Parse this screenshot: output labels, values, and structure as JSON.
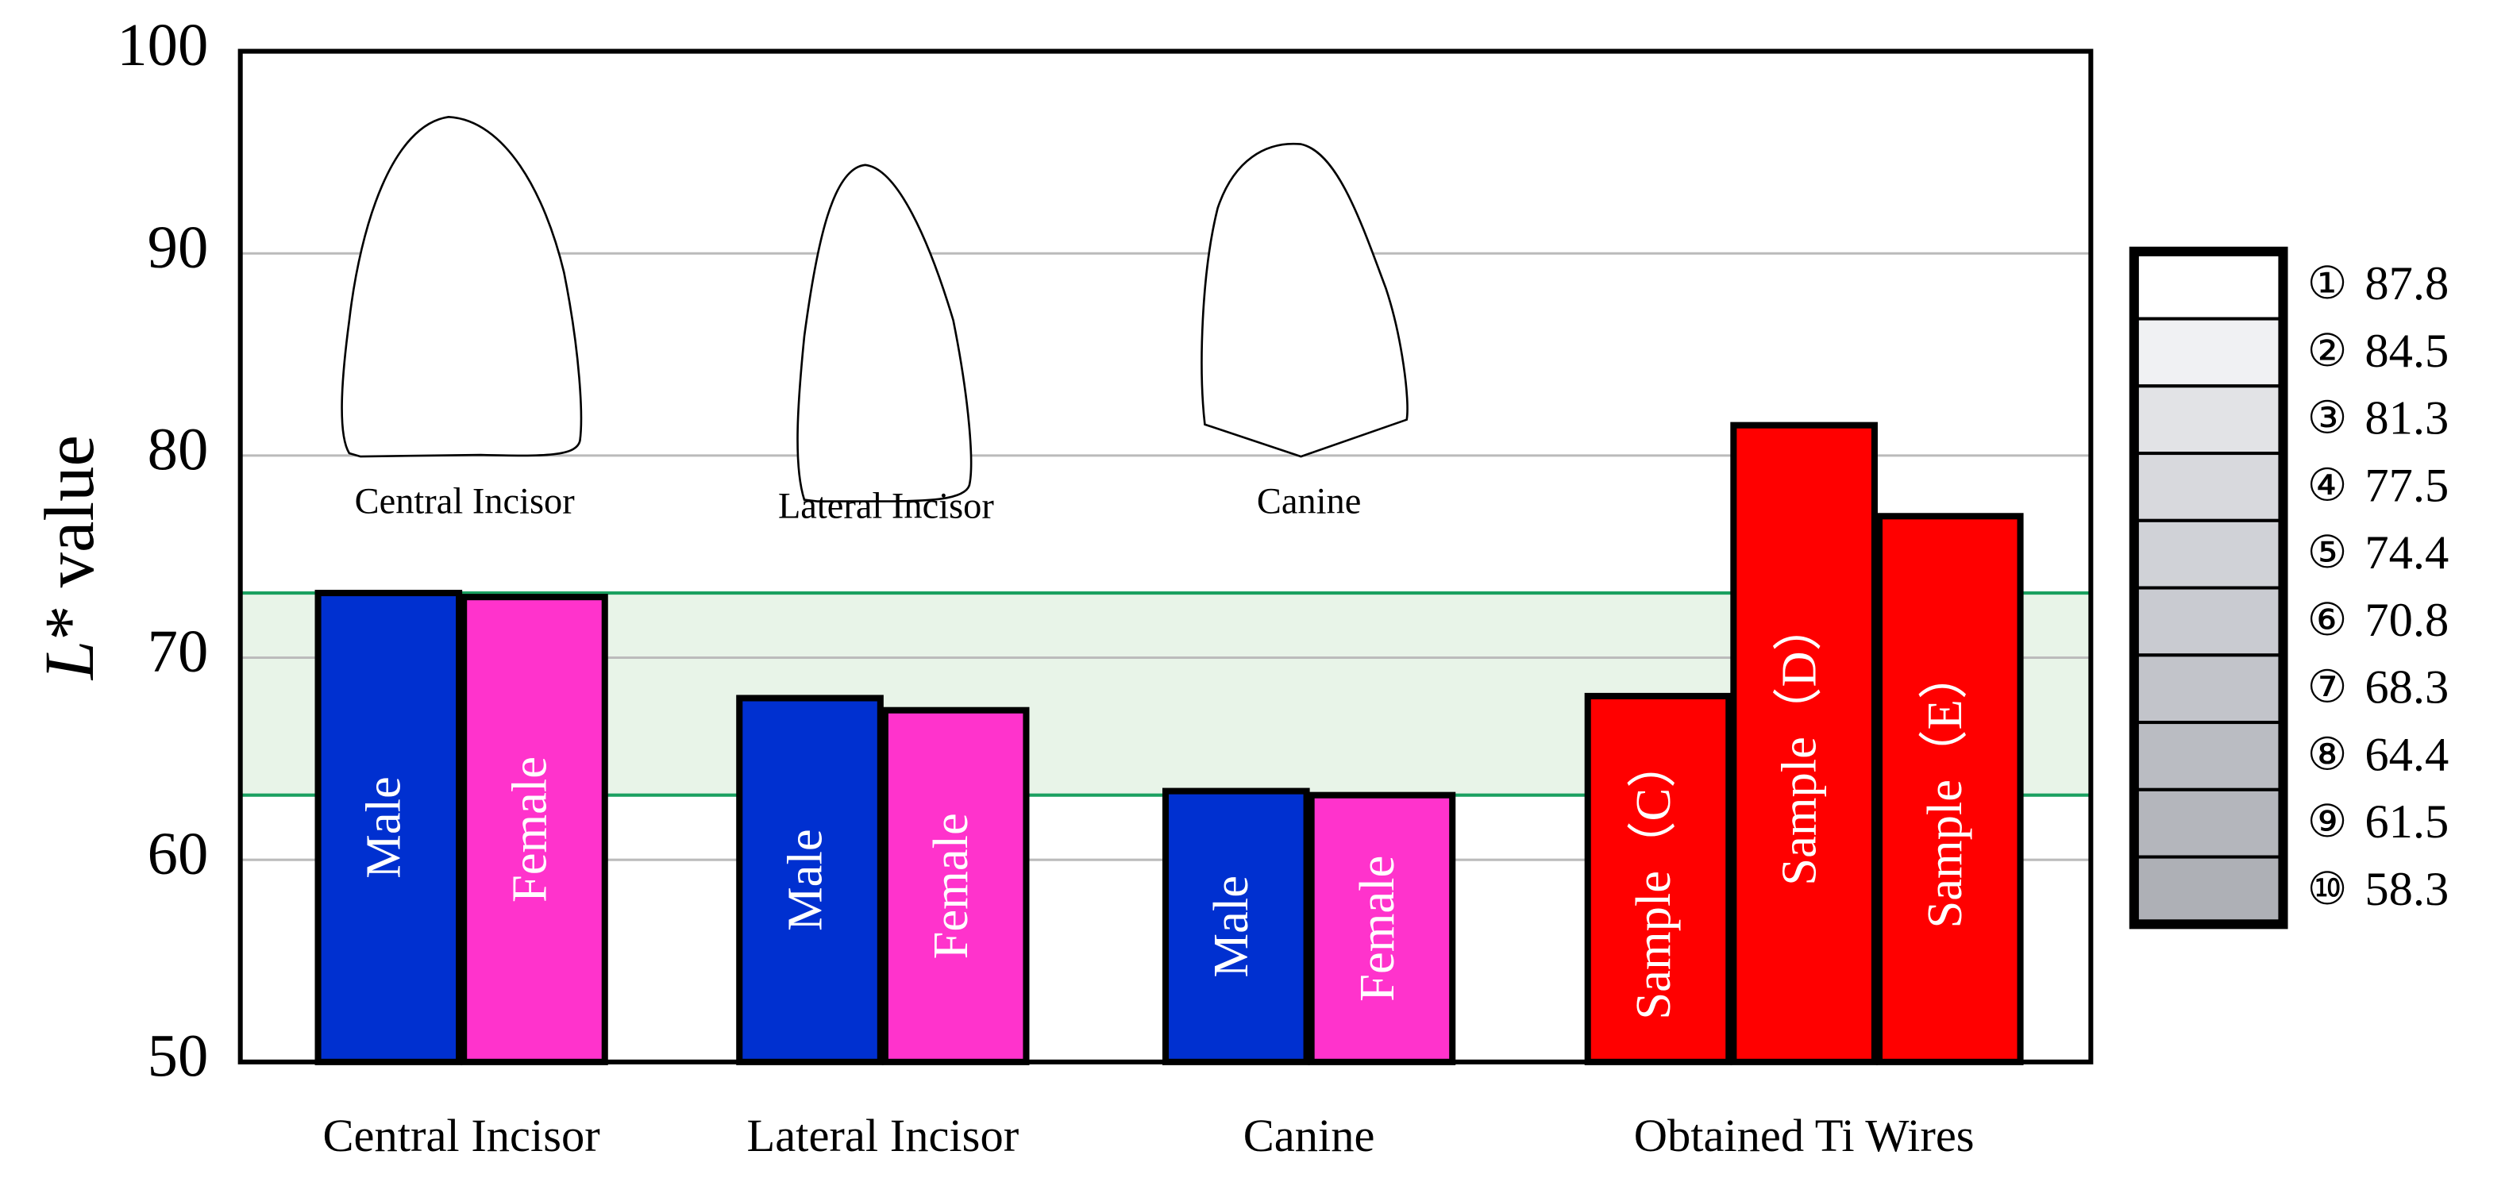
{
  "chart_data": {
    "type": "bar",
    "ylabel": {
      "italic": "L",
      "rest": "* value"
    },
    "ylim": [
      50,
      100
    ],
    "yticks": [
      50,
      60,
      70,
      80,
      90,
      100
    ],
    "grid": true,
    "reference_band": {
      "values": [
        63.2,
        73.2
      ],
      "color": "#e8f4e8",
      "line_color": "#1aa060"
    },
    "groups": [
      {
        "category": "Central Incisor",
        "bars": [
          {
            "name": "Male",
            "color": "#0030d0",
            "value": 73.2
          },
          {
            "name": "Female",
            "color": "#ff33cc",
            "value": 73.0
          }
        ]
      },
      {
        "category": "Lateral Incisor",
        "bars": [
          {
            "name": "Male",
            "color": "#0030d0",
            "value": 68.0
          },
          {
            "name": "Female",
            "color": "#ff33cc",
            "value": 67.4
          }
        ]
      },
      {
        "category": "Canine",
        "bars": [
          {
            "name": "Male",
            "color": "#0030d0",
            "value": 63.4
          },
          {
            "name": "Female",
            "color": "#ff33cc",
            "value": 63.2
          }
        ]
      },
      {
        "category": "Obtained Ti Wires",
        "bars": [
          {
            "name": "Sample（C）",
            "color": "#ff0000",
            "value": 68.1
          },
          {
            "name": "Sample（D）",
            "color": "#ff0000",
            "value": 81.5
          },
          {
            "name": "Sample（E）",
            "color": "#ff0000",
            "value": 77.0
          }
        ]
      }
    ],
    "tooth_labels": [
      "Central Incisor",
      "Lateral Incisor",
      "Canine"
    ],
    "shade_guide": [
      {
        "symbol": "①",
        "value": 87.8,
        "color": "#ffffff"
      },
      {
        "symbol": "②",
        "value": 84.5,
        "color": "#f0f1f3"
      },
      {
        "symbol": "③",
        "value": 81.3,
        "color": "#e2e3e6"
      },
      {
        "symbol": "④",
        "value": 77.5,
        "color": "#d8d9dd"
      },
      {
        "symbol": "⑤",
        "value": 74.4,
        "color": "#d0d2d7"
      },
      {
        "symbol": "⑥",
        "value": 70.8,
        "color": "#c9cbd1"
      },
      {
        "symbol": "⑦",
        "value": 68.3,
        "color": "#c2c4ca"
      },
      {
        "symbol": "⑧",
        "value": 64.4,
        "color": "#babcc2"
      },
      {
        "symbol": "⑨",
        "value": 61.5,
        "color": "#b4b6bc"
      },
      {
        "symbol": "⑩",
        "value": 58.3,
        "color": "#aeb0b6"
      }
    ]
  }
}
